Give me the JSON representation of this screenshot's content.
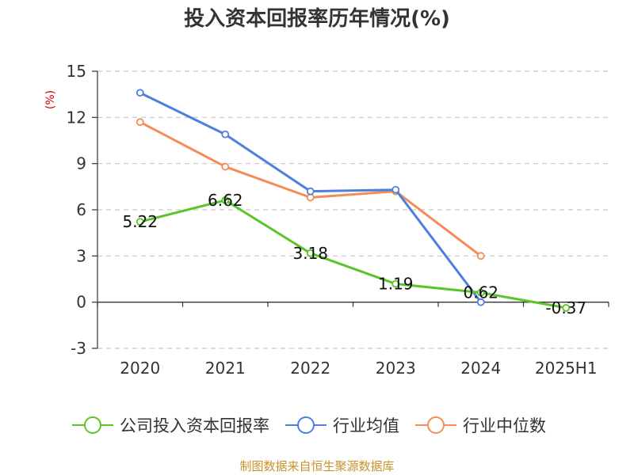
{
  "chart_data": {
    "type": "line",
    "title": "投入资本回报率历年情况(%)",
    "ylabel": "(%)",
    "categories": [
      "2020",
      "2021",
      "2022",
      "2023",
      "2024",
      "2025H1"
    ],
    "ylim": [
      -3,
      15
    ],
    "yticks": [
      "15",
      "12",
      "9",
      "6",
      "3",
      "0",
      "-3"
    ],
    "ytick_values": [
      15,
      12,
      9,
      6,
      3,
      0,
      -3
    ],
    "grid": true,
    "legend_position": "bottom",
    "series": [
      {
        "name": "公司投入资本回报率",
        "color": "#5cc42b",
        "values": [
          5.22,
          6.62,
          3.18,
          1.19,
          0.62,
          -0.37
        ],
        "labels": [
          "5.22",
          "6.62",
          "3.18",
          "1.19",
          "0.62",
          "-0.37"
        ]
      },
      {
        "name": "行业均值",
        "color": "#4e7fde",
        "values": [
          13.6,
          10.9,
          7.2,
          7.3,
          0.0,
          null
        ]
      },
      {
        "name": "行业中位数",
        "color": "#f58c57",
        "values": [
          11.7,
          8.8,
          6.8,
          7.2,
          3.0,
          null
        ]
      }
    ]
  },
  "source": "制图数据来自恒生聚源数据库"
}
